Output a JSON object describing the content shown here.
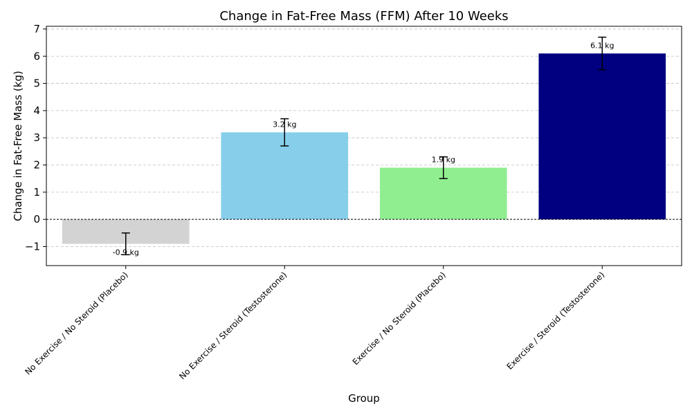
{
  "chart_data": {
    "type": "bar",
    "title": "Change in Fat-Free Mass (FFM) After 10 Weeks",
    "xlabel": "Group",
    "ylabel": "Change in Fat-Free Mass (kg)",
    "categories": [
      "No Exercise / No Steroid (Placebo)",
      "No Exercise / Steroid (Testosterone)",
      "Exercise / No Steroid (Placebo)",
      "Exercise / Steroid (Testosterone)"
    ],
    "values": [
      -0.9,
      3.2,
      1.9,
      6.1
    ],
    "errors": [
      0.4,
      0.5,
      0.4,
      0.6
    ],
    "data_labels": [
      "-0.9 kg",
      "3.2 kg",
      "1.9 kg",
      "6.1 kg"
    ],
    "colors": [
      "#d3d3d3",
      "#87ceeb",
      "#90ee90",
      "#000080"
    ],
    "ylim": [
      -1.7,
      7.1
    ],
    "yticks": [
      -1,
      0,
      1,
      2,
      3,
      4,
      5,
      6,
      7
    ],
    "ytick_labels": [
      "−1",
      "0",
      "1",
      "2",
      "3",
      "4",
      "5",
      "6",
      "7"
    ],
    "grid": "y",
    "zero_line": true
  }
}
